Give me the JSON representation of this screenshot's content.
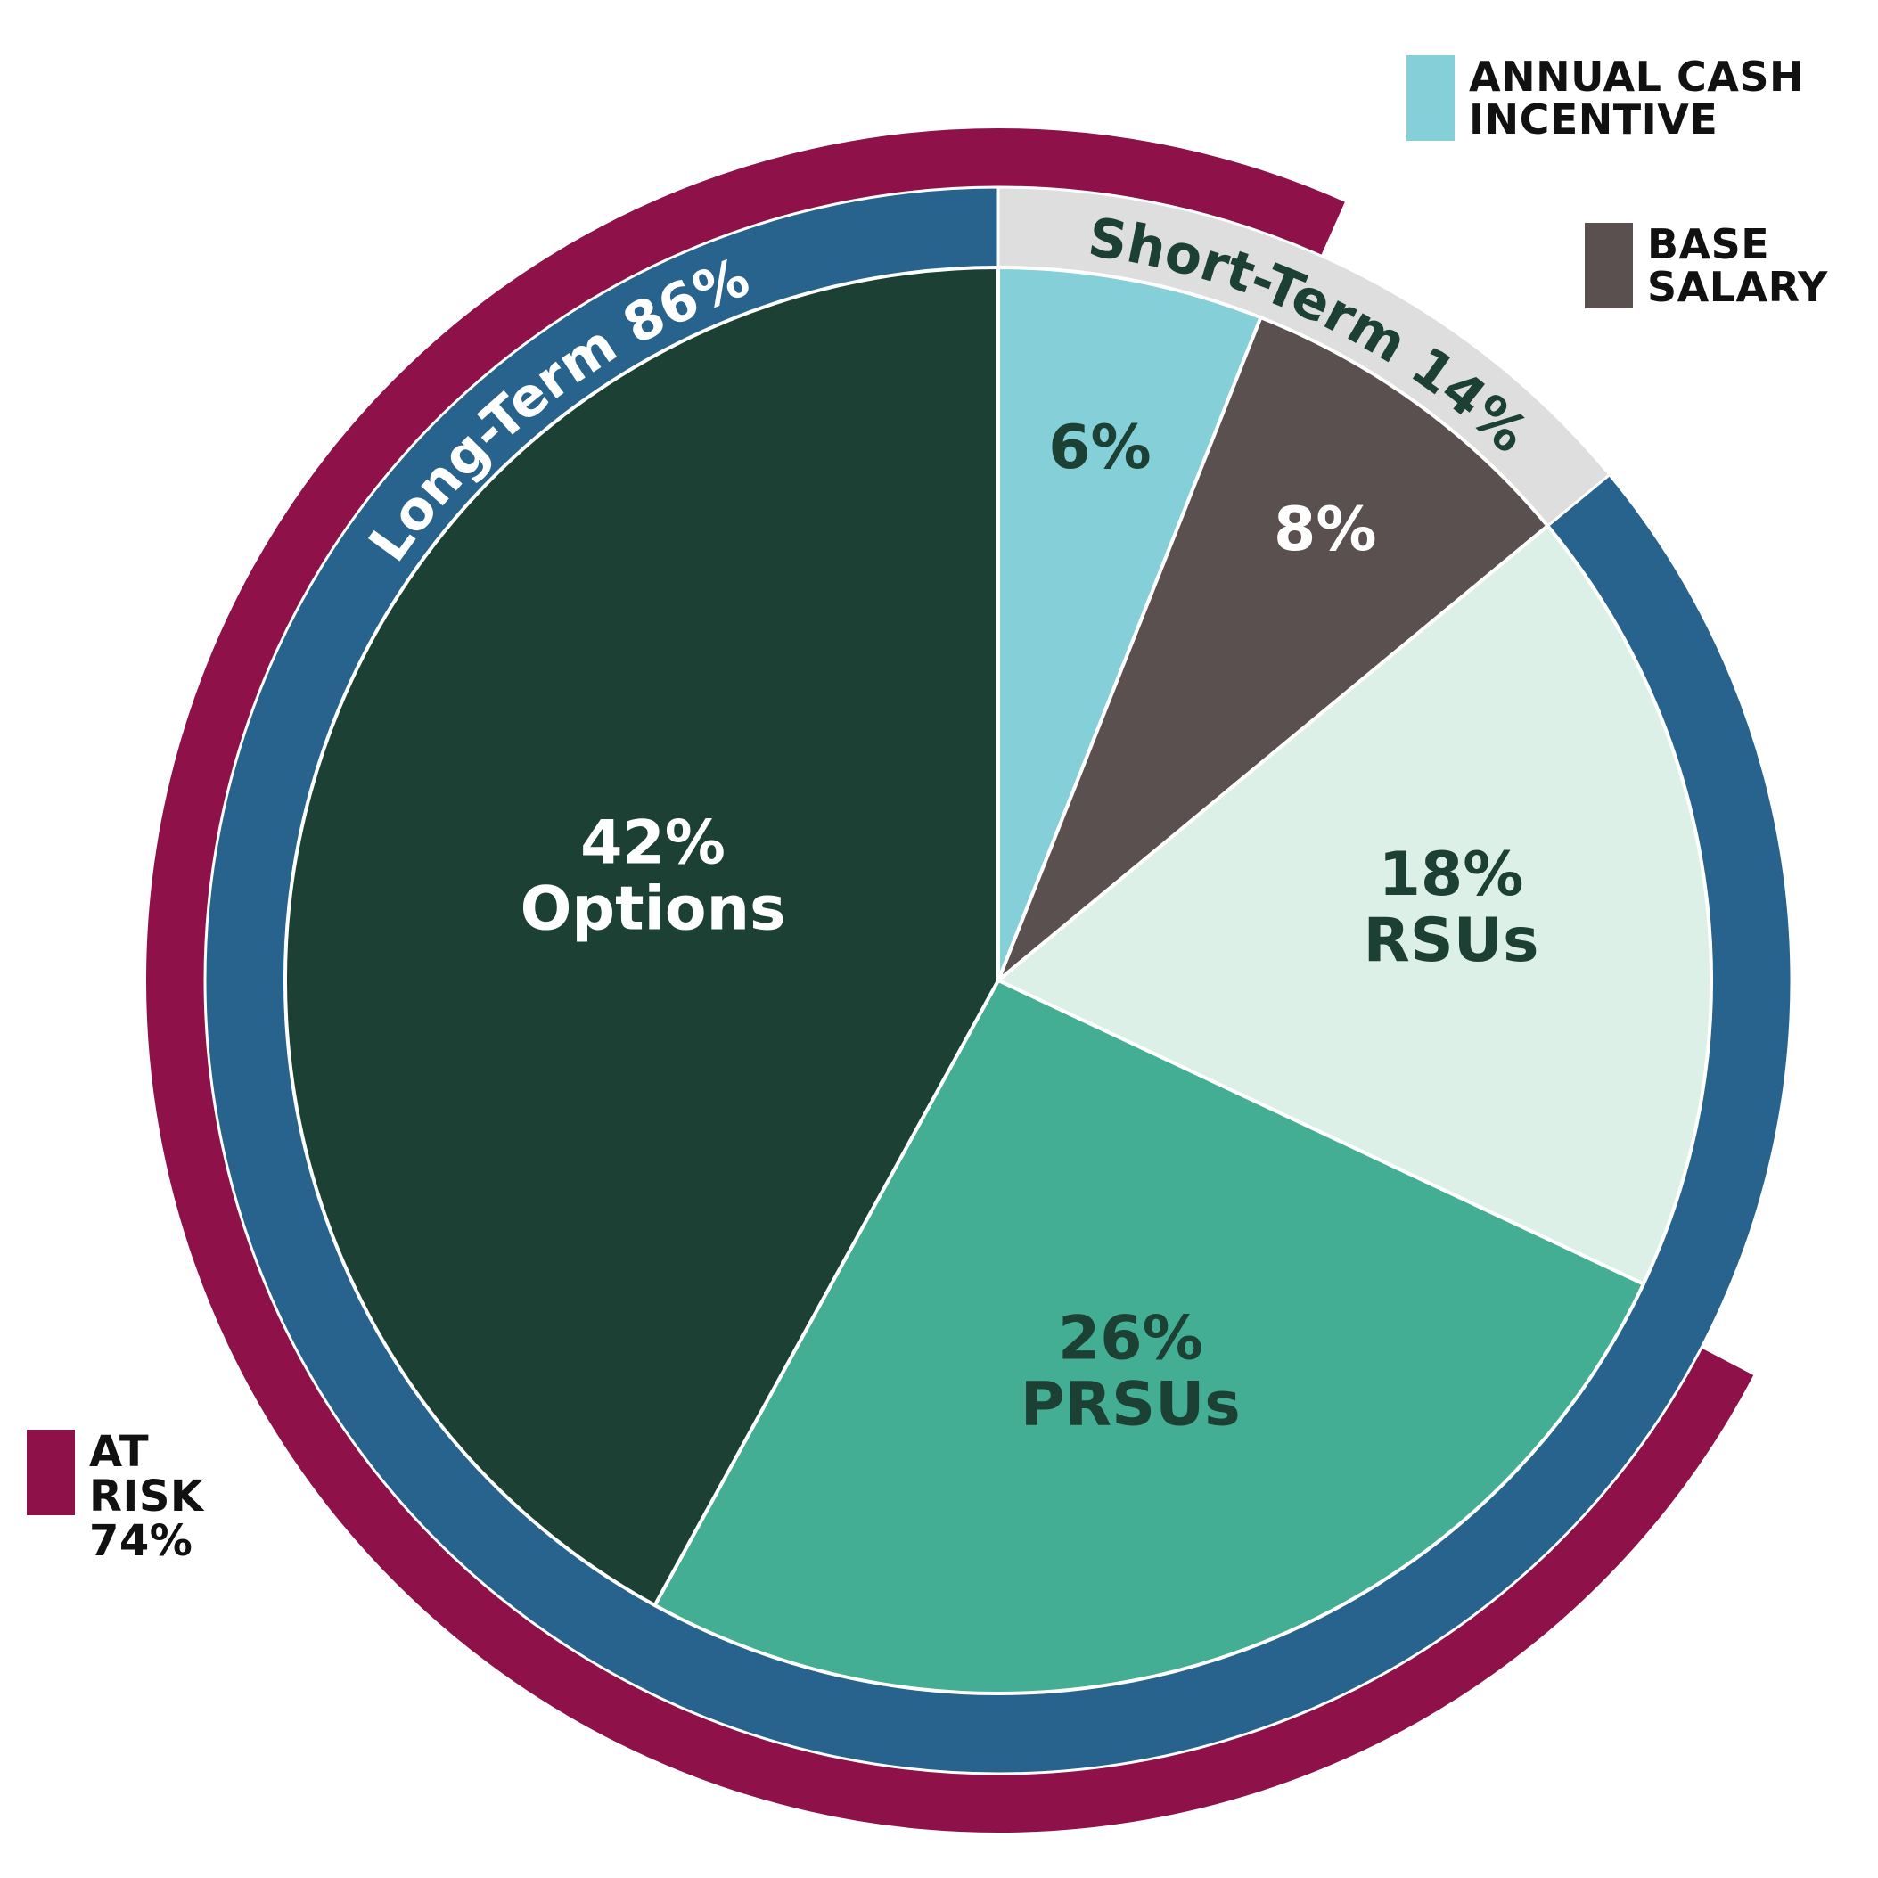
{
  "chart_data": {
    "type": "pie",
    "slices": [
      {
        "value_label": "6%",
        "label": "",
        "value": 6,
        "color": "#84CFD8",
        "label_color": "#1C4034"
      },
      {
        "value_label": "8%",
        "label": "",
        "value": 8,
        "color": "#5A5050",
        "label_color": "#FFFFFF"
      },
      {
        "value_label": "18%",
        "label": "RSUs",
        "value": 18,
        "color": "#DDF0E7",
        "label_color": "#1C4034"
      },
      {
        "value_label": "26%",
        "label": "PRSUs",
        "value": 26,
        "color": "#43AE93",
        "label_color": "#1C4034"
      },
      {
        "value_label": "42%",
        "label": "Options",
        "value": 42,
        "color": "#1C4034",
        "label_color": "#FFFFFF"
      }
    ],
    "rings": [
      {
        "label": "Short-Term 14%",
        "value": 14,
        "color": "#DEDEDE",
        "label_color": "#1C4034"
      },
      {
        "label": "Long-Term 86%",
        "value": 86,
        "color": "#27638C",
        "label_color": "#FFFFFF"
      }
    ],
    "outer_ring": {
      "value": 74,
      "color": "#8E1149"
    },
    "legend": [
      {
        "lines": [
          "ANNUAL CASH",
          "INCENTIVE"
        ],
        "color": "#84CFD8"
      },
      {
        "lines": [
          "BASE",
          "SALARY"
        ],
        "color": "#5A5050"
      },
      {
        "lines": [
          "AT",
          "RISK",
          "74%"
        ],
        "color": "#8E1149"
      }
    ]
  }
}
